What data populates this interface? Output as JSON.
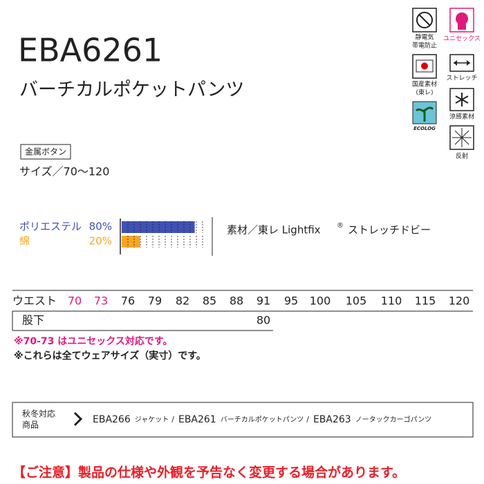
{
  "header": {
    "code": "EBA6261",
    "name": "バーチカルポケットパンツ"
  },
  "icons": {
    "antistatic": [
      "静電気",
      "帯電防止"
    ],
    "unisex": "ユニセックス",
    "domestic": [
      "国産素材",
      "(東レ)"
    ],
    "stretch": "ストレッチ",
    "ecolog": "ECOLOG",
    "cool": "涼感素材",
    "reflect": "反射"
  },
  "button": "金属ボタン",
  "size_range": "サイズ／70〜120",
  "material": {
    "items": [
      {
        "name": "ポリエステル",
        "value": 80,
        "value_label": "80%",
        "color": "#3f51b5"
      },
      {
        "name": "綿",
        "value": 20,
        "value_label": "20%",
        "color": "#f5a623"
      }
    ],
    "description": "素材／東レ Lightfix",
    "mark": "®",
    "fabric": "ストレッチドビー"
  },
  "sizes": {
    "waist_label": "ウエスト",
    "waist": [
      70,
      73,
      76,
      79,
      82,
      85,
      88,
      91,
      95,
      100,
      105,
      110,
      115,
      120
    ],
    "highlighted": [
      0,
      1
    ],
    "highlight_color": "#e0197d",
    "inseam_label": "股下",
    "inseam": 80
  },
  "notes": [
    "※70-73 はユニセックス対応です。",
    "※これらは全てウェアサイズ（実寸）です。"
  ],
  "series": {
    "label": [
      "秋冬対応",
      "商品"
    ],
    "items": [
      {
        "code": "EBA266",
        "name": "ジャケット"
      },
      {
        "code": "EBA261",
        "name": "バーチカルポケットパンツ"
      },
      {
        "code": "EBA263",
        "name": "ノータックカーゴパンツ"
      }
    ],
    "separator": "/"
  },
  "caution": "【ご注意】製品の仕様や外観を予告なく変更する場合があります。"
}
